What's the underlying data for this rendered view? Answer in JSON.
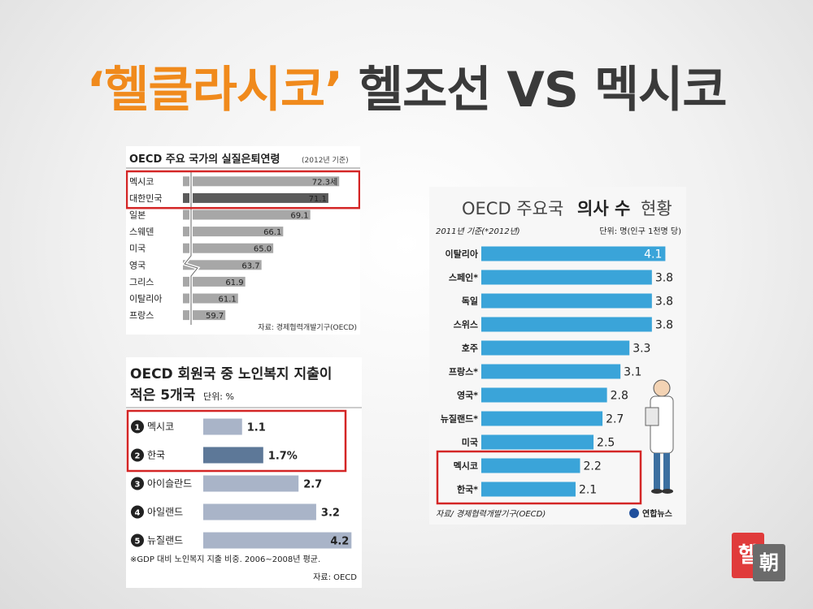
{
  "page_title": {
    "highlight": "‘헬클라시코’",
    "rest": "헬조선 VS 멕시코"
  },
  "chart_data": [
    {
      "type": "bar",
      "title": "OECD 주요 국가의 실질은퇴연령",
      "subtitle": "(2012년 기준)",
      "categories": [
        "멕시코",
        "대한민국",
        "일본",
        "스웨덴",
        "미국",
        "영국",
        "그리스",
        "이탈리아",
        "프랑스"
      ],
      "values": [
        72.3,
        71.1,
        69.1,
        66.1,
        65.0,
        63.7,
        61.9,
        61.1,
        59.7
      ],
      "value_labels": [
        "72.3세",
        "71.1",
        "69.1",
        "66.1",
        "65.0",
        "63.7",
        "61.9",
        "61.1",
        "59.7"
      ],
      "highlight": [
        "멕시코",
        "대한민국"
      ],
      "axis_break": true,
      "source": "자료: 경제협력개발기구(OECD)"
    },
    {
      "type": "bar",
      "title": "OECD 회원국 중 노인복지 지출이",
      "title2": "적은 5개국",
      "unit": "단위: %",
      "ranks": [
        "①",
        "②",
        "③",
        "④",
        "⑤"
      ],
      "categories": [
        "멕시코",
        "한국",
        "아이슬란드",
        "아일랜드",
        "뉴질랜드"
      ],
      "values": [
        1.1,
        1.7,
        2.7,
        3.2,
        4.2
      ],
      "value_labels": [
        "1.1",
        "1.7%",
        "2.7",
        "3.2",
        "4.2"
      ],
      "highlight": [
        "멕시코",
        "한국"
      ],
      "note": "※GDP 대비 노인복지 지출 비중. 2006~2008년 평균.",
      "source": "자료: OECD"
    },
    {
      "type": "bar",
      "title_part1": "OECD 주요국",
      "title_part2": "의사 수",
      "title_part3": "현황",
      "subtitle": "2011년 기준(*2012년)",
      "unit": "단위: 명(인구 1천명 당)",
      "categories": [
        "이탈리아",
        "스페인*",
        "독일",
        "스위스",
        "호주",
        "프랑스*",
        "영국*",
        "뉴질랜드*",
        "미국",
        "멕시코",
        "한국*"
      ],
      "values": [
        4.1,
        3.8,
        3.8,
        3.8,
        3.3,
        3.1,
        2.8,
        2.7,
        2.5,
        2.2,
        2.1
      ],
      "value_labels": [
        "4.1",
        "3.8",
        "3.8",
        "3.8",
        "3.3",
        "3.1",
        "2.8",
        "2.7",
        "2.5",
        "2.2",
        "2.1"
      ],
      "highlight": [
        "멕시코",
        "한국*"
      ],
      "source": "자료/ 경제협력개발기구(OECD)",
      "credit": "연합뉴스"
    }
  ],
  "logo": {
    "char1": "헬",
    "char2": "朝"
  },
  "colors": {
    "title_orange": "#f08a1c",
    "title_dark": "#3a3a3a",
    "bar_gray": "#a7a7a7",
    "bar_dark": "#5b5b5b",
    "bar_blue_gray": "#a9b4c8",
    "bar_blue_gray_dark": "#5d7898",
    "bar_cyan": "#3aa4d9",
    "highlight_red": "#d42626"
  }
}
